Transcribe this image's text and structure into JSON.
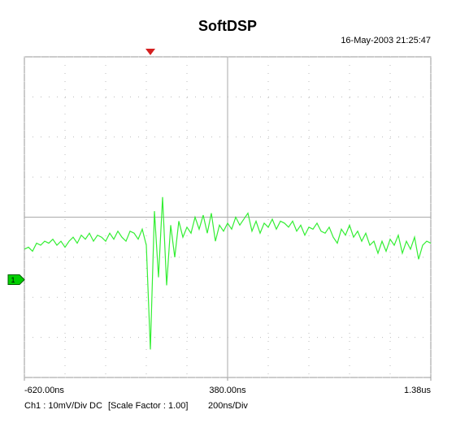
{
  "chart_data": {
    "type": "line",
    "title": "SoftDSP",
    "timestamp": "16-May-2003 21:25:47",
    "status": {
      "channel": "Ch1 : 10mV/Div",
      "coupling": "DC",
      "scale": "[Scale Factor : 1.00]",
      "timebase": "200ns/Div"
    },
    "trigger_x": 0,
    "channel_marker": {
      "label": "1",
      "value": -15.6,
      "color": "#00d000"
    },
    "xlim": [
      -620,
      1380
    ],
    "ylim": [
      -40,
      40
    ],
    "xticks": [
      {
        "value": -620,
        "label": "-620.00ns"
      },
      {
        "value": 380,
        "label": "380.00ns"
      },
      {
        "value": 1380,
        "label": "1.38us"
      }
    ],
    "xgrid": [
      -620,
      -420,
      -220,
      -20,
      180,
      380,
      580,
      780,
      980,
      1180,
      1380
    ],
    "ygrid": [
      -40,
      -30,
      -20,
      -10,
      0,
      10,
      20,
      30,
      40
    ],
    "x": [
      -620,
      -600,
      -580,
      -560,
      -540,
      -520,
      -500,
      -480,
      -460,
      -440,
      -420,
      -400,
      -380,
      -360,
      -340,
      -320,
      -300,
      -280,
      -260,
      -240,
      -220,
      -200,
      -180,
      -160,
      -140,
      -120,
      -100,
      -80,
      -60,
      -40,
      -20,
      0,
      20,
      40,
      60,
      80,
      100,
      120,
      140,
      160,
      180,
      200,
      220,
      240,
      260,
      280,
      300,
      320,
      340,
      360,
      380,
      400,
      420,
      440,
      460,
      480,
      500,
      520,
      540,
      560,
      580,
      600,
      620,
      640,
      660,
      680,
      700,
      720,
      740,
      760,
      780,
      800,
      820,
      840,
      860,
      880,
      900,
      920,
      940,
      960,
      980,
      1000,
      1020,
      1040,
      1060,
      1080,
      1100,
      1120,
      1140,
      1160,
      1180,
      1200,
      1220,
      1240,
      1260,
      1280,
      1300,
      1320,
      1340,
      1360,
      1380
    ],
    "series": [
      {
        "color": "#33ee33",
        "values": [
          -8,
          -7.5,
          -8.5,
          -6.5,
          -7,
          -6,
          -6.5,
          -5.5,
          -7,
          -6,
          -7.5,
          -6,
          -5,
          -6.5,
          -4.5,
          -5.5,
          -4,
          -6,
          -4.5,
          -5,
          -6,
          -4,
          -5.5,
          -3.5,
          -5,
          -6,
          -3.5,
          -4,
          -5.5,
          -3,
          -7,
          -33,
          1.5,
          -15,
          5,
          -17,
          -2,
          -10,
          -1,
          -5,
          -2.5,
          -4,
          0,
          -3,
          0.5,
          -4,
          1,
          -6,
          -2,
          -3.5,
          -1.5,
          -3,
          0,
          -2,
          -0.5,
          1,
          -3.5,
          -1,
          -4,
          -1.5,
          -2.5,
          -0.5,
          -3,
          -1,
          -1.5,
          -2.5,
          -1,
          -3.5,
          -2,
          -4.5,
          -2.5,
          -3,
          -1.5,
          -3.5,
          -4,
          -2.5,
          -5,
          -6.5,
          -3,
          -4.5,
          -2,
          -5,
          -3.5,
          -6,
          -4,
          -7,
          -6,
          -9,
          -6,
          -8.5,
          -5.5,
          -7,
          -4.5,
          -9,
          -6,
          -8,
          -5,
          -10.5,
          -7,
          -6,
          -6.5
        ]
      }
    ]
  }
}
